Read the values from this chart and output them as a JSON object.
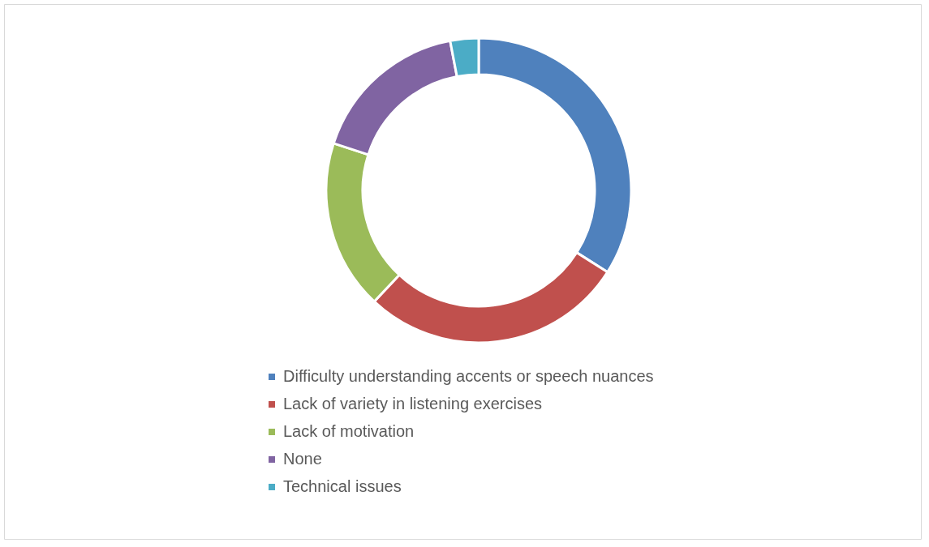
{
  "chart_data": {
    "type": "donut",
    "categories": [
      "Difficulty understanding accents or speech nuances",
      "Lack of variety in listening exercises",
      "Lack of motivation",
      "None",
      "Technical issues"
    ],
    "values": [
      34,
      28,
      18,
      17,
      3
    ],
    "colors": [
      "#4f81bd",
      "#c0504d",
      "#9bbb59",
      "#8064a2",
      "#4bacc6"
    ],
    "legend": "bottom"
  }
}
